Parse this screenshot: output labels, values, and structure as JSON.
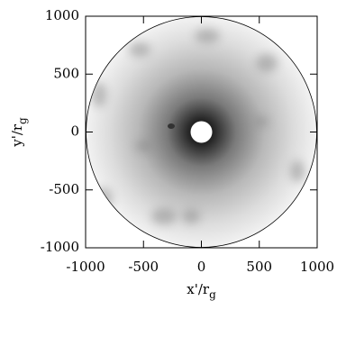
{
  "chart_data": {
    "type": "image",
    "xlabel": "x'/r",
    "xlabel_sub": "g",
    "ylabel": "y'/r",
    "ylabel_sub": "g",
    "xlim": [
      -1000,
      1000
    ],
    "ylim": [
      -1000,
      1000
    ],
    "xticks": [
      -1000,
      -500,
      0,
      500,
      1000
    ],
    "yticks": [
      -1000,
      -500,
      0,
      500,
      1000
    ]
  }
}
